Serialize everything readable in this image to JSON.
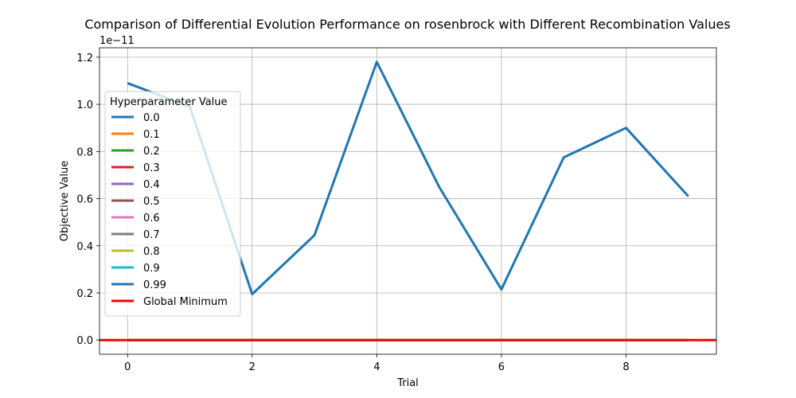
{
  "chart_data": {
    "type": "line",
    "title": "Comparison of Differential Evolution Performance on rosenbrock with Different Recombination Values",
    "xlabel": "Trial",
    "ylabel": "Objective Value",
    "y_scale_label": "1e−11",
    "x": [
      0,
      1,
      2,
      3,
      4,
      5,
      6,
      7,
      8,
      9
    ],
    "xlim": [
      -0.45,
      9.45
    ],
    "ylim": [
      -0.06,
      1.24
    ],
    "x_ticks": [
      0,
      2,
      4,
      6,
      8
    ],
    "x_tick_labels": [
      "0",
      "2",
      "4",
      "6",
      "8"
    ],
    "y_ticks": [
      0.0,
      0.2,
      0.4,
      0.6,
      0.8,
      1.0,
      1.2
    ],
    "y_tick_labels": [
      "0.0",
      "0.2",
      "0.4",
      "0.6",
      "0.8",
      "1.0",
      "1.2"
    ],
    "grid": true,
    "legend": {
      "title": "Hyperparameter Value",
      "placement": "center-left"
    },
    "series": [
      {
        "name": "0.0",
        "color": "#1f77b4",
        "values": [
          0,
          0,
          0,
          0,
          0,
          0,
          0,
          0,
          0,
          0
        ]
      },
      {
        "name": "0.1",
        "color": "#ff7f0e",
        "values": [
          0,
          0,
          0,
          0,
          0,
          0,
          0,
          0,
          0,
          0
        ]
      },
      {
        "name": "0.2",
        "color": "#2ca02c",
        "values": [
          0,
          0,
          0,
          0,
          0,
          0,
          0,
          0,
          0,
          0
        ]
      },
      {
        "name": "0.3",
        "color": "#d62728",
        "values": [
          0,
          0,
          0,
          0,
          0,
          0,
          0,
          0,
          0,
          0
        ]
      },
      {
        "name": "0.4",
        "color": "#9467bd",
        "values": [
          0,
          0,
          0,
          0,
          0,
          0,
          0,
          0,
          0,
          0
        ]
      },
      {
        "name": "0.5",
        "color": "#8c564b",
        "values": [
          0,
          0,
          0,
          0,
          0,
          0,
          0,
          0,
          0,
          0
        ]
      },
      {
        "name": "0.6",
        "color": "#e377c2",
        "values": [
          0,
          0,
          0,
          0,
          0,
          0,
          0,
          0,
          0,
          0
        ]
      },
      {
        "name": "0.7",
        "color": "#7f7f7f",
        "values": [
          0,
          0,
          0,
          0,
          0,
          0,
          0,
          0,
          0,
          0
        ]
      },
      {
        "name": "0.8",
        "color": "#bcbd22",
        "values": [
          0,
          0,
          0,
          0,
          0,
          0,
          0,
          0,
          0,
          0
        ]
      },
      {
        "name": "0.9",
        "color": "#17becf",
        "values": [
          0,
          0,
          0,
          0,
          0,
          0,
          0,
          0,
          0,
          0
        ]
      },
      {
        "name": "0.99",
        "color": "#1f77b4",
        "values": [
          1.09,
          0.99,
          0.195,
          0.445,
          1.18,
          0.65,
          0.215,
          0.775,
          0.9,
          0.61
        ]
      }
    ],
    "reference_line": {
      "name": "Global Minimum",
      "color": "#ff0000",
      "value": 0
    }
  }
}
